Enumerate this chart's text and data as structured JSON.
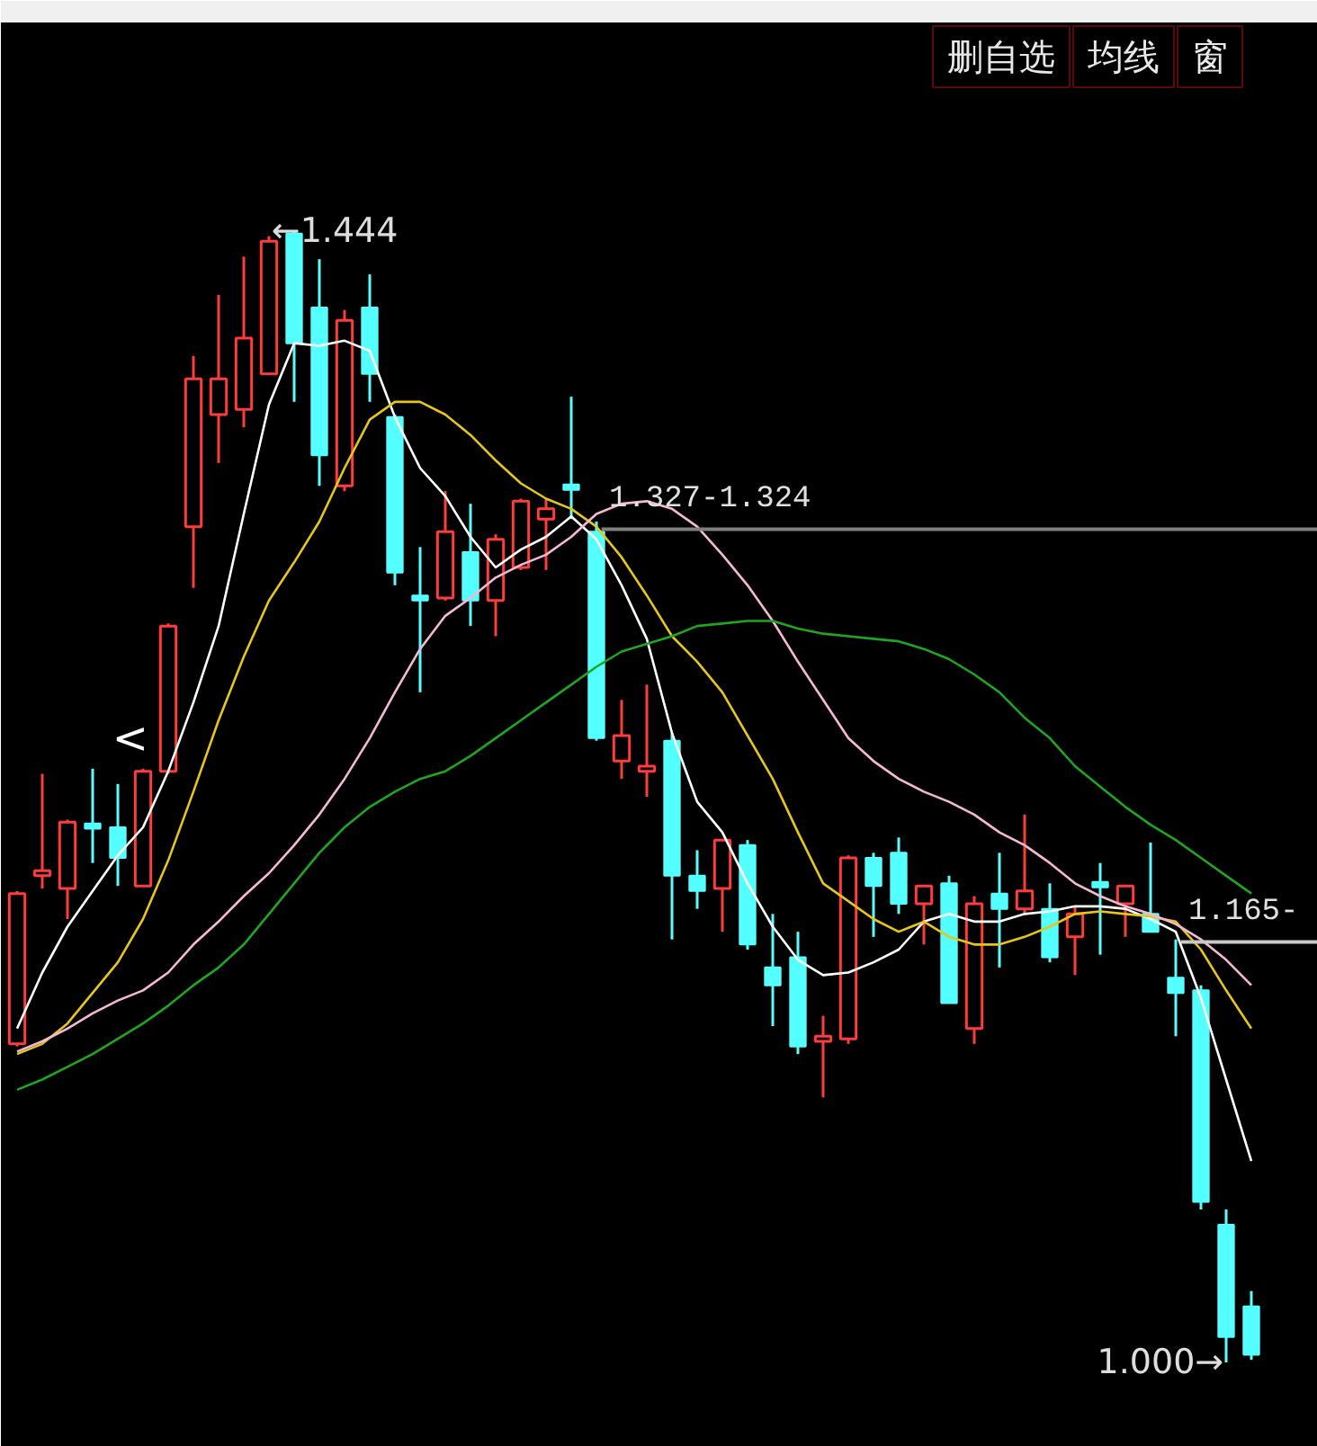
{
  "chart_data": {
    "type": "candlestick",
    "categories": [
      null,
      null,
      null,
      null,
      null,
      null,
      null,
      null,
      null,
      null,
      null,
      null,
      null,
      null,
      null,
      null,
      null,
      null,
      null,
      null,
      null,
      null,
      null,
      null,
      null,
      null,
      null,
      null,
      null,
      null,
      null,
      null,
      null,
      null,
      null,
      null,
      null,
      null,
      null,
      null,
      null,
      null,
      null,
      null,
      null,
      null,
      null,
      null,
      null,
      null
    ],
    "ohlc": [
      [
        1.125,
        1.185,
        1.124,
        1.184
      ],
      [
        1.191,
        1.231,
        1.186,
        1.193
      ],
      [
        1.186,
        1.213,
        1.174,
        1.212
      ],
      [
        1.211,
        1.233,
        1.196,
        1.21
      ],
      [
        1.21,
        1.227,
        1.187,
        1.198
      ],
      [
        1.187,
        1.233,
        1.187,
        1.232
      ],
      [
        1.232,
        1.29,
        1.231,
        1.289
      ],
      [
        1.328,
        1.395,
        1.304,
        1.386
      ],
      [
        1.372,
        1.419,
        1.353,
        1.386
      ],
      [
        1.374,
        1.434,
        1.367,
        1.402
      ],
      [
        1.388,
        1.442,
        1.388,
        1.44
      ],
      [
        1.443,
        1.444,
        1.377,
        1.4
      ],
      [
        1.414,
        1.433,
        1.344,
        1.356
      ],
      [
        1.344,
        1.413,
        1.342,
        1.409
      ],
      [
        1.414,
        1.427,
        1.377,
        1.388
      ],
      [
        1.371,
        1.372,
        1.305,
        1.31
      ],
      [
        1.301,
        1.32,
        1.263,
        1.299
      ],
      [
        1.3,
        1.342,
        1.299,
        1.326
      ],
      [
        1.318,
        1.337,
        1.289,
        1.299
      ],
      [
        1.299,
        1.325,
        1.285,
        1.323
      ],
      [
        1.312,
        1.339,
        1.311,
        1.338
      ],
      [
        1.331,
        1.339,
        1.311,
        1.335
      ],
      [
        1.344,
        1.379,
        1.331,
        1.343
      ],
      [
        1.326,
        1.33,
        1.244,
        1.245
      ],
      [
        1.236,
        1.26,
        1.229,
        1.246
      ],
      [
        1.232,
        1.266,
        1.222,
        1.234
      ],
      [
        1.244,
        1.247,
        1.166,
        1.191
      ],
      [
        1.191,
        1.201,
        1.178,
        1.185
      ],
      [
        1.186,
        1.205,
        1.169,
        1.205
      ],
      [
        1.203,
        1.205,
        1.162,
        1.164
      ],
      [
        1.155,
        1.176,
        1.132,
        1.148
      ],
      [
        1.159,
        1.169,
        1.121,
        1.124
      ],
      [
        1.126,
        1.136,
        1.104,
        1.128
      ],
      [
        1.127,
        1.199,
        1.125,
        1.198
      ],
      [
        1.198,
        1.2,
        1.167,
        1.187
      ],
      [
        1.2,
        1.206,
        1.176,
        1.18
      ],
      [
        1.18,
        1.187,
        1.164,
        1.187
      ],
      [
        1.188,
        1.191,
        1.141,
        1.141
      ],
      [
        1.131,
        1.183,
        1.125,
        1.18
      ],
      [
        1.184,
        1.2,
        1.155,
        1.178
      ],
      [
        1.178,
        1.215,
        1.176,
        1.185
      ],
      [
        1.178,
        1.188,
        1.157,
        1.159
      ],
      [
        1.167,
        1.179,
        1.152,
        1.176
      ],
      [
        1.188,
        1.196,
        1.16,
        1.187
      ],
      [
        1.18,
        1.187,
        1.167,
        1.187
      ],
      [
        1.176,
        1.204,
        1.169,
        1.169
      ],
      [
        1.151,
        1.166,
        1.128,
        1.145
      ],
      [
        1.146,
        1.148,
        1.06,
        1.063
      ],
      [
        1.054,
        1.06,
        1.0,
        1.01
      ],
      [
        1.022,
        1.028,
        1.001,
        1.003
      ]
    ],
    "colors": [
      "#ff3c3c",
      "#ff3c3c",
      "#ff3c3c",
      "#54ffff",
      "#54ffff",
      "#ff3c3c",
      "#ff3c3c",
      "#ff3c3c",
      "#ff3c3c",
      "#ff3c3c",
      "#ff3c3c",
      "#54ffff",
      "#54ffff",
      "#ff3c3c",
      "#54ffff",
      "#54ffff",
      "#54ffff",
      "#ff3c3c",
      "#54ffff",
      "#ff3c3c",
      "#ff3c3c",
      "#ff3c3c",
      "#54ffff",
      "#54ffff",
      "#ff3c3c",
      "#ff3c3c",
      "#54ffff",
      "#54ffff",
      "#ff3c3c",
      "#54ffff",
      "#54ffff",
      "#54ffff",
      "#ff3c3c",
      "#ff3c3c",
      "#54ffff",
      "#54ffff",
      "#ff3c3c",
      "#54ffff",
      "#ff3c3c",
      "#54ffff",
      "#ff3c3c",
      "#54ffff",
      "#ff3c3c",
      "#54ffff",
      "#ff3c3c",
      "#54ffff",
      "#54ffff",
      "#54ffff",
      "#54ffff",
      "#54ffff"
    ],
    "series": [
      {
        "type": "line",
        "color": "#ffffff",
        "values": [
          1.131,
          1.153,
          1.171,
          1.185,
          1.199,
          1.21,
          1.232,
          1.259,
          1.289,
          1.333,
          1.376,
          1.4,
          1.399,
          1.401,
          1.397,
          1.371,
          1.351,
          1.34,
          1.324,
          1.312,
          1.319,
          1.324,
          1.332,
          1.323,
          1.305,
          1.284,
          1.247,
          1.22,
          1.208,
          1.188,
          1.171,
          1.158,
          1.152,
          1.153,
          1.157,
          1.162,
          1.173,
          1.176,
          1.173,
          1.173,
          1.176,
          1.177,
          1.179,
          1.179,
          1.178,
          1.174,
          1.169,
          1.143,
          1.111,
          1.079
        ]
      },
      {
        "type": "line",
        "color": "#e6c619",
        "values": [
          1.121,
          1.125,
          1.133,
          1.145,
          1.157,
          1.174,
          1.197,
          1.224,
          1.252,
          1.277,
          1.299,
          1.314,
          1.33,
          1.351,
          1.37,
          1.377,
          1.377,
          1.372,
          1.364,
          1.354,
          1.345,
          1.339,
          1.335,
          1.328,
          1.316,
          1.301,
          1.285,
          1.275,
          1.263,
          1.246,
          1.229,
          1.208,
          1.188,
          1.181,
          1.174,
          1.169,
          1.173,
          1.167,
          1.164,
          1.164,
          1.167,
          1.171,
          1.176,
          1.177,
          1.176,
          1.175,
          1.173,
          1.162,
          1.146,
          1.131
        ]
      },
      {
        "type": "line",
        "color": "#f5b8d6",
        "values": [
          1.122,
          1.126,
          1.131,
          1.137,
          1.142,
          1.146,
          1.153,
          1.164,
          1.173,
          1.183,
          1.192,
          1.203,
          1.215,
          1.229,
          1.245,
          1.263,
          1.28,
          1.293,
          1.3,
          1.308,
          1.313,
          1.317,
          1.324,
          1.333,
          1.337,
          1.338,
          1.335,
          1.328,
          1.317,
          1.305,
          1.291,
          1.275,
          1.26,
          1.245,
          1.236,
          1.229,
          1.224,
          1.22,
          1.215,
          1.208,
          1.203,
          1.196,
          1.188,
          1.183,
          1.179,
          1.176,
          1.172,
          1.166,
          1.158,
          1.148
        ]
      },
      {
        "type": "line",
        "color": "#1fa51f",
        "values": [
          1.107,
          1.111,
          1.116,
          1.121,
          1.127,
          1.133,
          1.14,
          1.148,
          1.155,
          1.164,
          1.176,
          1.188,
          1.2,
          1.21,
          1.218,
          1.224,
          1.229,
          1.232,
          1.238,
          1.245,
          1.252,
          1.259,
          1.266,
          1.273,
          1.279,
          1.282,
          1.285,
          1.289,
          1.29,
          1.291,
          1.291,
          1.288,
          1.286,
          1.285,
          1.284,
          1.283,
          1.28,
          1.276,
          1.27,
          1.263,
          1.253,
          1.245,
          1.234,
          1.226,
          1.218,
          1.211,
          1.205,
          1.198,
          1.191,
          1.184
        ]
      }
    ],
    "ref_lines": [
      {
        "axis": "y",
        "value": 1.327,
        "label": "1.327-1.324",
        "color": "#808080"
      },
      {
        "axis": "y",
        "value": 1.165,
        "label": "1.165-",
        "color": "#c8c8c8"
      }
    ],
    "annotations": [
      "←1.444",
      "1.000→",
      "<",
      "删自选",
      "均线",
      "窗"
    ],
    "tick_labels": false
  }
}
